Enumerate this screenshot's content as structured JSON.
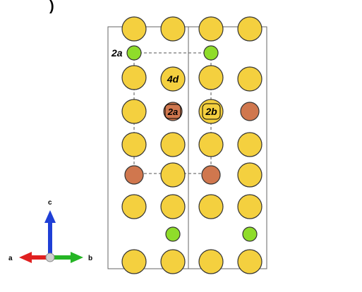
{
  "figure": {
    "panel_marker": ")",
    "site_labels": {
      "green_site": "2a",
      "yellow_site": "4d",
      "brown_site_1": "2a",
      "brown_site_2": "2b"
    },
    "axes": {
      "a": "a",
      "b": "b",
      "c": "c"
    },
    "colors": {
      "yellow_atom": "#f4d03f",
      "brown_atom": "#d0774e",
      "green_atom": "#8fdc2a",
      "atom_stroke": "#333333",
      "cell_outline": "#666666",
      "dashed_cell": "#555555",
      "axis_a": "#e02020",
      "axis_b": "#25b525",
      "axis_c": "#1f3fd6"
    }
  }
}
